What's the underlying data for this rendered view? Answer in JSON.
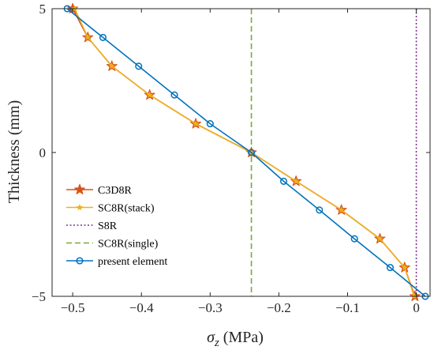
{
  "chart_data": {
    "type": "line",
    "xlabel_symbol": "σ",
    "xlabel_subscript": "z",
    "xlabel_unit": " (MPa)",
    "ylabel": "Thickness (mm)",
    "xlim": [
      -0.53,
      0.02
    ],
    "ylim": [
      -5,
      5
    ],
    "xticks": [
      -0.5,
      -0.4,
      -0.3,
      -0.2,
      -0.1,
      0
    ],
    "xtick_labels": [
      "−0.5",
      "−0.4",
      "−0.3",
      "−0.2",
      "−0.1",
      "0"
    ],
    "yticks": [
      -5,
      0,
      5
    ],
    "ytick_labels": [
      "−5",
      "0",
      "5"
    ],
    "grid": false,
    "legend_position": "bottom-left",
    "series": [
      {
        "name": "C3D8R",
        "color": "#D95319",
        "style": "solid",
        "marker": "star",
        "x": [
          -0.5,
          -0.478,
          -0.443,
          -0.388,
          -0.321,
          -0.24,
          -0.175,
          -0.109,
          -0.053,
          -0.017,
          -0.002
        ],
        "y": [
          5,
          4,
          3,
          2,
          1,
          0,
          -1,
          -2,
          -3,
          -4,
          -5
        ]
      },
      {
        "name": "SC8R(stack)",
        "color": "#EDB120",
        "style": "solid",
        "marker": "star-small",
        "x": [
          -0.497,
          -0.478,
          -0.443,
          -0.388,
          -0.321,
          -0.24,
          -0.175,
          -0.109,
          -0.053,
          -0.017,
          -0.003
        ],
        "y": [
          5,
          4,
          3,
          2,
          1,
          0,
          -1,
          -2,
          -3,
          -4,
          -5
        ]
      },
      {
        "name": "S8R",
        "color": "#7E2F8E",
        "style": "dotted",
        "marker": "none",
        "x": [
          0,
          0
        ],
        "y": [
          5,
          -5
        ]
      },
      {
        "name": "SC8R(single)",
        "color": "#77AC30",
        "style": "dashed",
        "marker": "none",
        "x": [
          -0.24,
          -0.24
        ],
        "y": [
          5,
          -5
        ]
      },
      {
        "name": "present element",
        "color": "#0072BD",
        "style": "solid",
        "marker": "circle",
        "x": [
          -0.508,
          -0.456,
          -0.404,
          -0.352,
          -0.3,
          -0.24,
          -0.193,
          -0.141,
          -0.09,
          -0.038,
          0.013
        ],
        "y": [
          5,
          4,
          3,
          2,
          1,
          0,
          -1,
          -2,
          -3,
          -4,
          -5
        ]
      }
    ]
  }
}
